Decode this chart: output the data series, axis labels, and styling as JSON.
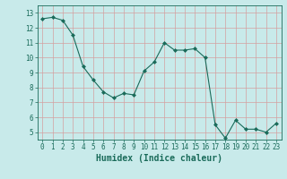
{
  "xlabel": "Humidex (Indice chaleur)",
  "x": [
    0,
    1,
    2,
    3,
    4,
    5,
    6,
    7,
    8,
    9,
    10,
    11,
    12,
    13,
    14,
    15,
    16,
    17,
    18,
    19,
    20,
    21,
    22,
    23
  ],
  "y": [
    12.6,
    12.7,
    12.5,
    11.5,
    9.4,
    8.5,
    7.7,
    7.3,
    7.6,
    7.5,
    9.1,
    9.7,
    11.0,
    10.5,
    10.5,
    10.6,
    10.0,
    5.5,
    4.6,
    5.8,
    5.2,
    5.2,
    5.0,
    5.6
  ],
  "line_color": "#1a6b5a",
  "marker": "D",
  "marker_size": 2,
  "bg_color": "#c8eaea",
  "grid_color_v": "#d4a0a0",
  "grid_color_h": "#d4a0a0",
  "xlim": [
    -0.5,
    23.5
  ],
  "ylim": [
    4.5,
    13.5
  ],
  "yticks": [
    5,
    6,
    7,
    8,
    9,
    10,
    11,
    12,
    13
  ],
  "xticks": [
    0,
    1,
    2,
    3,
    4,
    5,
    6,
    7,
    8,
    9,
    10,
    11,
    12,
    13,
    14,
    15,
    16,
    17,
    18,
    19,
    20,
    21,
    22,
    23
  ],
  "label_color": "#1a6b5a",
  "tick_fontsize": 5.5,
  "xlabel_fontsize": 7
}
